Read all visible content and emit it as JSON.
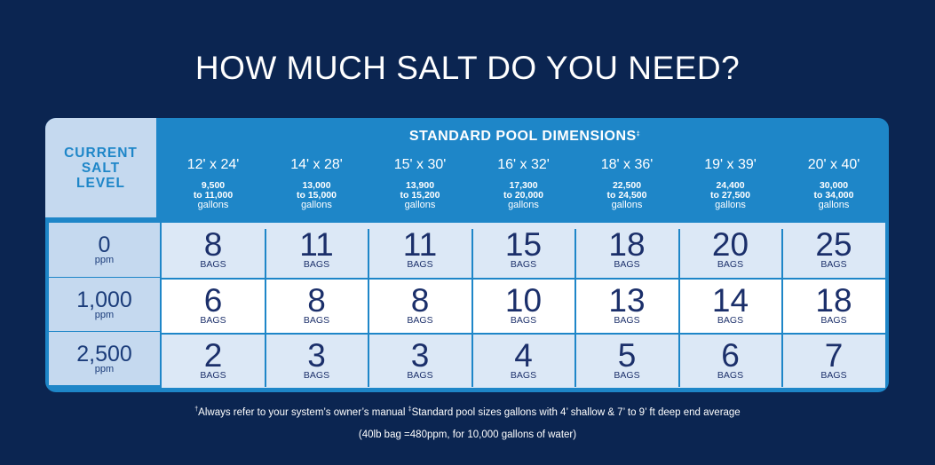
{
  "title": "HOW MUCH SALT DO YOU NEED?",
  "table": {
    "left_header": "CURRENT\nSALT\nLEVEL",
    "header_title": "STANDARD POOL DIMENSIONS",
    "header_mark": "‡",
    "columns": [
      {
        "size": "12' x 24'",
        "range": "9,500\nto 11,000",
        "unit": "gallons"
      },
      {
        "size": "14' x 28'",
        "range": "13,000\nto 15,000",
        "unit": "gallons"
      },
      {
        "size": "15' x 30'",
        "range": "13,900\nto 15,200",
        "unit": "gallons"
      },
      {
        "size": "16' x 32'",
        "range": "17,300\nto 20,000",
        "unit": "gallons"
      },
      {
        "size": "18' x 36'",
        "range": "22,500\nto 24,500",
        "unit": "gallons"
      },
      {
        "size": "19' x 39'",
        "range": "24,400\nto 27,500",
        "unit": "gallons"
      },
      {
        "size": "20' x 40'",
        "range": "30,000\nto 34,000",
        "unit": "gallons"
      }
    ],
    "rows": [
      {
        "level": "0",
        "unit": "ppm",
        "values": [
          "8",
          "11",
          "11",
          "15",
          "18",
          "20",
          "25"
        ]
      },
      {
        "level": "1,000",
        "unit": "ppm",
        "values": [
          "6",
          "8",
          "8",
          "10",
          "13",
          "14",
          "18"
        ]
      },
      {
        "level": "2,500",
        "unit": "ppm",
        "values": [
          "2",
          "3",
          "3",
          "4",
          "5",
          "6",
          "7"
        ]
      }
    ],
    "bags_label": "BAGS"
  },
  "footnote": {
    "mark1": "†",
    "text1": "Always refer to your system’s owner’s manual ",
    "mark2": "‡",
    "text2": "Standard pool sizes gallons with 4’ shallow & 7’ to 9’ ft deep end average",
    "line2": "(40lb bag =480ppm, for 10,000 gallons of water)"
  }
}
